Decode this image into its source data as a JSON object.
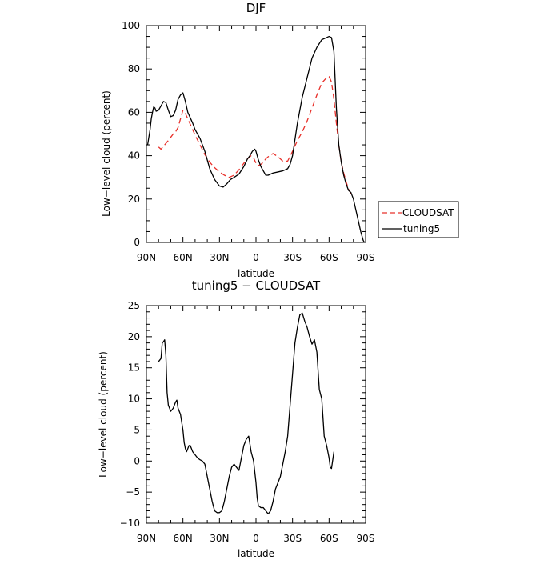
{
  "chart_data": [
    {
      "type": "line",
      "title": "DJF",
      "xlabel": "latitude",
      "ylabel": "Low−level cloud (percent)",
      "xlim": [
        90,
        -90
      ],
      "ylim": [
        0,
        100
      ],
      "xticks": [
        90,
        60,
        30,
        0,
        -30,
        -60,
        -90
      ],
      "xtick_labels": [
        "90N",
        "60N",
        "30N",
        "0",
        "30S",
        "60S",
        "90S"
      ],
      "yticks": [
        0,
        20,
        40,
        60,
        80,
        100
      ],
      "ytick_labels": [
        "0",
        "20",
        "40",
        "60",
        "80",
        "100"
      ],
      "legend_position": "outside-right",
      "series": [
        {
          "name": "CLOUDSAT",
          "color": "#e8302a",
          "dash": true,
          "x": [
            80,
            78,
            75,
            72,
            70,
            68,
            66,
            64,
            62,
            60,
            58,
            56,
            54,
            52,
            50,
            46,
            42,
            38,
            34,
            30,
            26,
            22,
            18,
            14,
            10,
            7,
            4,
            2,
            0,
            -2,
            -4,
            -6,
            -8,
            -10,
            -14,
            -18,
            -22,
            -26,
            -30,
            -34,
            -38,
            -42,
            -46,
            -50,
            -54,
            -58,
            -60,
            -62,
            -64,
            -66,
            -68,
            -70,
            -72,
            -74,
            -76,
            -78,
            -80
          ],
          "y": [
            44,
            43,
            45,
            47,
            48.5,
            50,
            51,
            53,
            57,
            61,
            59.5,
            57,
            54.5,
            52,
            49.5,
            45,
            40.5,
            37,
            34.5,
            32.5,
            31,
            30,
            31,
            33.5,
            36.5,
            38.5,
            40,
            39,
            36.5,
            35.5,
            36,
            37,
            38.5,
            39.5,
            41,
            39.5,
            37.5,
            37.5,
            42,
            47,
            51,
            56,
            62,
            68,
            73.5,
            76,
            76.5,
            74,
            66,
            55,
            45,
            37,
            32,
            28,
            24.5,
            22.5,
            21.5
          ]
        },
        {
          "name": "tuning5",
          "color": "#000000",
          "dash": false,
          "x": [
            89,
            87,
            86,
            85,
            84,
            83,
            82,
            80,
            78,
            76,
            74,
            72,
            70,
            68,
            66,
            64,
            62,
            60,
            58,
            56,
            54,
            52,
            50,
            46,
            42,
            38,
            34,
            30,
            27,
            24,
            21,
            18,
            14,
            10,
            7,
            5,
            3,
            1,
            0,
            -2,
            -4,
            -6,
            -8,
            -10,
            -14,
            -18,
            -22,
            -26,
            -28,
            -30,
            -34,
            -38,
            -42,
            -46,
            -50,
            -54,
            -58,
            -60,
            -62,
            -64,
            -66,
            -68,
            -70,
            -72,
            -74,
            -76,
            -78,
            -80,
            -82,
            -84,
            -86,
            -88,
            -89
          ],
          "y": [
            45,
            52,
            57,
            60,
            62.5,
            62,
            60.5,
            61,
            63,
            65,
            64.5,
            61,
            58,
            58.5,
            61,
            66,
            68,
            69,
            65,
            60,
            57.5,
            55,
            52,
            48,
            42,
            34,
            29,
            26,
            25.5,
            27,
            29,
            30,
            31.5,
            35,
            38.5,
            40,
            42,
            43,
            42,
            38,
            35,
            33,
            31,
            31,
            32,
            32.5,
            33,
            34,
            36,
            40,
            55,
            67,
            76,
            85,
            90,
            93.5,
            94.5,
            95,
            94.5,
            88,
            62,
            45,
            37,
            31,
            27,
            24,
            23,
            20,
            15,
            10,
            5,
            1,
            0
          ]
        }
      ]
    },
    {
      "type": "line",
      "title": "tuning5 − CLOUDSAT",
      "xlabel": "latitude",
      "ylabel": "Low−level cloud (percent)",
      "xlim": [
        90,
        -90
      ],
      "ylim": [
        -10,
        25
      ],
      "xticks": [
        90,
        60,
        30,
        0,
        -30,
        -60,
        -90
      ],
      "xtick_labels": [
        "90N",
        "60N",
        "30N",
        "0",
        "30S",
        "60S",
        "90S"
      ],
      "yticks": [
        -10,
        -5,
        0,
        5,
        10,
        15,
        20,
        25
      ],
      "ytick_labels": [
        "−10",
        "−5",
        "0",
        "5",
        "10",
        "15",
        "20",
        "25"
      ],
      "series": [
        {
          "name": "",
          "color": "#000000",
          "dash": false,
          "x": [
            80,
            78,
            77,
            76,
            75,
            74,
            73,
            72,
            71,
            70,
            68,
            66,
            65,
            64,
            62,
            60,
            59,
            58,
            57,
            56,
            55,
            54,
            52,
            50,
            48,
            46,
            44,
            42,
            40,
            38,
            36,
            34,
            32,
            30,
            28,
            26,
            25,
            24,
            22,
            20,
            18,
            16,
            14,
            12,
            10,
            8,
            6,
            4,
            2,
            0,
            -1,
            -2,
            -4,
            -6,
            -8,
            -10,
            -12,
            -14,
            -15,
            -16,
            -18,
            -20,
            -22,
            -24,
            -26,
            -28,
            -30,
            -32,
            -34,
            -36,
            -38,
            -40,
            -42,
            -44,
            -46,
            -48,
            -50,
            -52,
            -54,
            -56,
            -58,
            -60,
            -61,
            -62,
            -64,
            -65,
            -66,
            -68,
            -70,
            -72,
            -74,
            -76,
            -78,
            -80
          ],
          "y": [
            16,
            16.5,
            19,
            19.2,
            19.5,
            17,
            11,
            9,
            8.5,
            8,
            8.5,
            9.5,
            9.8,
            8.5,
            7.5,
            5,
            3,
            2,
            1.5,
            2,
            2.5,
            2.5,
            1.5,
            1,
            0.5,
            0.2,
            0,
            -0.5,
            -2.5,
            -4.5,
            -6.5,
            -8,
            -8.3,
            -8.3,
            -8,
            -6.5,
            -5.5,
            -4.5,
            -2.5,
            -1,
            -0.5,
            -1,
            -1.5,
            0.5,
            2.5,
            3.5,
            4,
            1.5,
            0,
            -3.5,
            -6,
            -7.2,
            -7.5,
            -7.5,
            -8,
            -8.5,
            -8,
            -6.5,
            -5.5,
            -4.5,
            -3.5,
            -2.5,
            -0.5,
            1.5,
            4,
            9,
            14,
            19,
            21.5,
            23.5,
            23.8,
            22.5,
            21.5,
            20,
            18.8,
            19.5,
            17.5,
            11.5,
            10,
            4,
            2.5,
            0.5,
            -1,
            -1.2,
            1.5,
            null,
            null,
            null,
            null,
            null,
            null,
            null,
            null,
            null
          ]
        }
      ]
    }
  ],
  "legend": {
    "items": [
      {
        "label": "CLOUDSAT",
        "color": "#e8302a",
        "dash": true
      },
      {
        "label": "tuning5",
        "color": "#000000",
        "dash": false
      }
    ]
  }
}
